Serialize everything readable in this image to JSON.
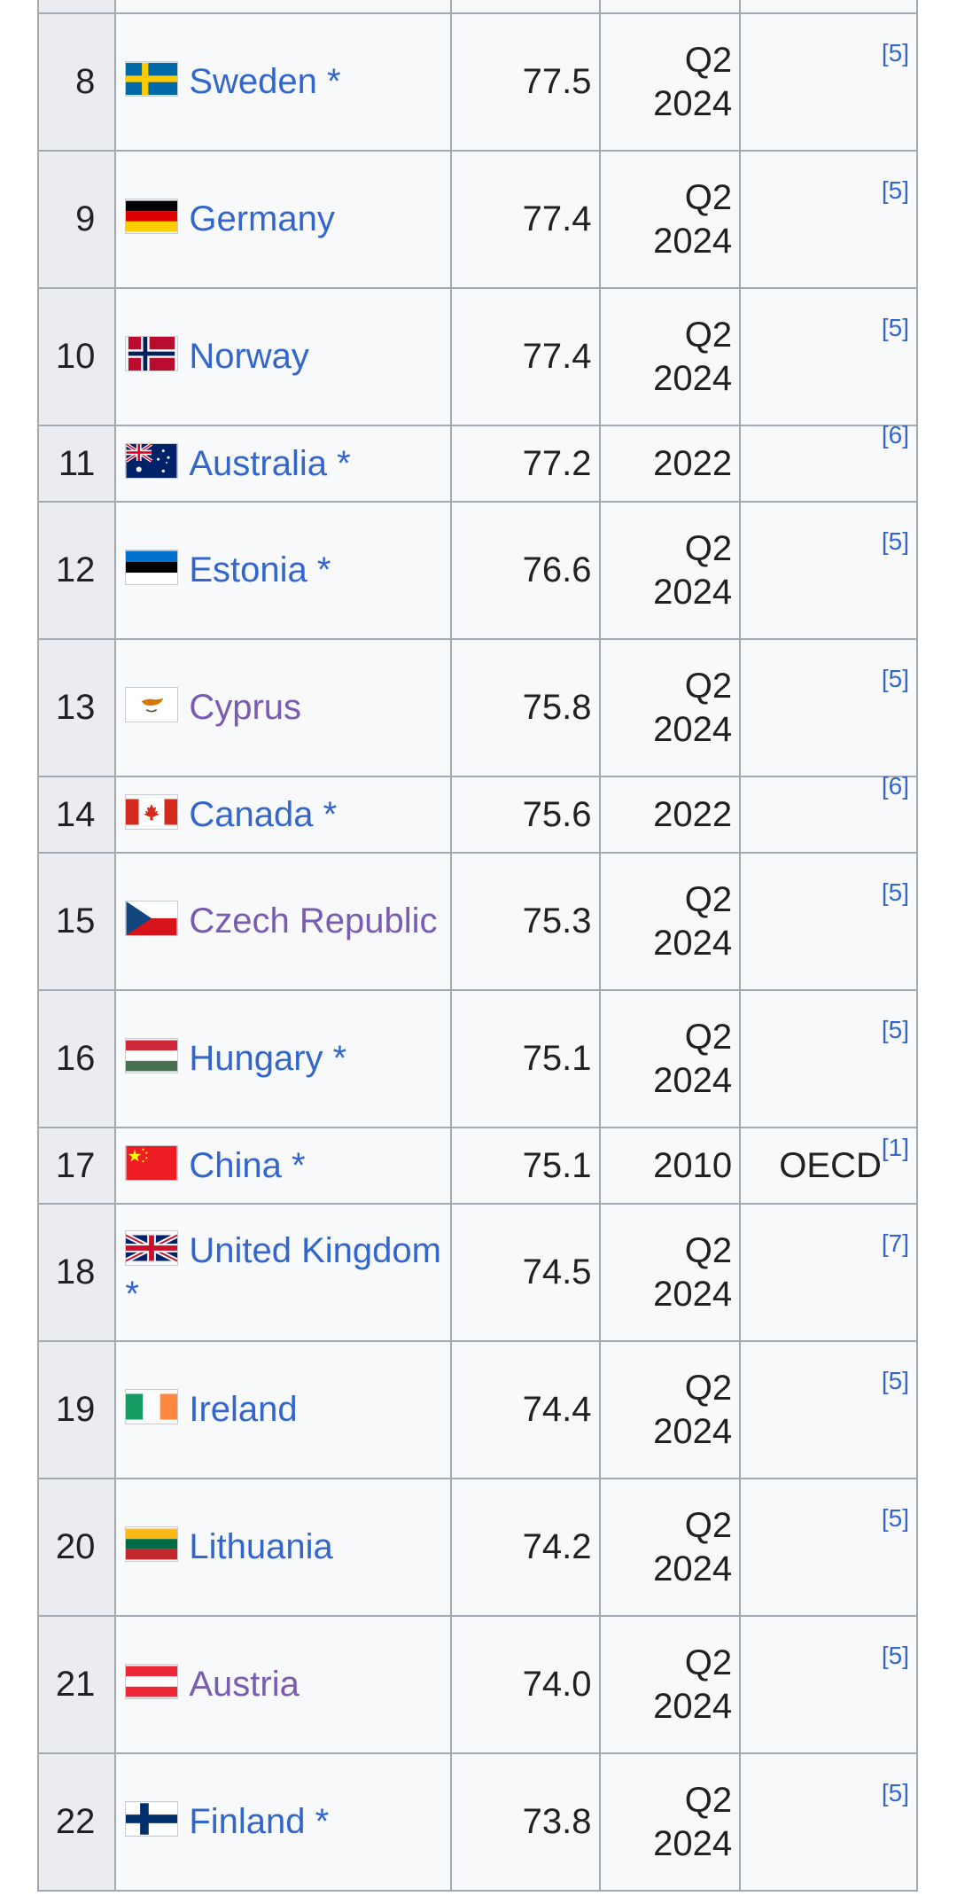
{
  "rows": [
    {
      "rank": "8",
      "country": "Sweden *",
      "visited": false,
      "flag": "sweden-flag",
      "value": "77.5",
      "date_line1": "Q2",
      "date_line2": "2024",
      "ref_prefix": "",
      "ref": "[5]"
    },
    {
      "rank": "9",
      "country": "Germany",
      "visited": false,
      "flag": "germany-flag",
      "value": "77.4",
      "date_line1": "Q2",
      "date_line2": "2024",
      "ref_prefix": "",
      "ref": "[5]"
    },
    {
      "rank": "10",
      "country": "Norway",
      "visited": false,
      "flag": "norway-flag",
      "value": "77.4",
      "date_line1": "Q2",
      "date_line2": "2024",
      "ref_prefix": "",
      "ref": "[5]"
    },
    {
      "rank": "11",
      "country": "Australia *",
      "visited": false,
      "flag": "australia-flag",
      "value": "77.2",
      "date_line1": "2022",
      "date_line2": "",
      "ref_prefix": "",
      "ref": "[6]"
    },
    {
      "rank": "12",
      "country": "Estonia *",
      "visited": false,
      "flag": "estonia-flag",
      "value": "76.6",
      "date_line1": "Q2",
      "date_line2": "2024",
      "ref_prefix": "",
      "ref": "[5]"
    },
    {
      "rank": "13",
      "country": "Cyprus",
      "visited": true,
      "flag": "cyprus-flag",
      "value": "75.8",
      "date_line1": "Q2",
      "date_line2": "2024",
      "ref_prefix": "",
      "ref": "[5]"
    },
    {
      "rank": "14",
      "country": "Canada *",
      "visited": false,
      "flag": "canada-flag",
      "value": "75.6",
      "date_line1": "2022",
      "date_line2": "",
      "ref_prefix": "",
      "ref": "[6]"
    },
    {
      "rank": "15",
      "country": "Czech Republic",
      "visited": true,
      "flag": "czech-flag",
      "value": "75.3",
      "date_line1": "Q2",
      "date_line2": "2024",
      "ref_prefix": "",
      "ref": "[5]"
    },
    {
      "rank": "16",
      "country": "Hungary *",
      "visited": false,
      "flag": "hungary-flag",
      "value": "75.1",
      "date_line1": "Q2",
      "date_line2": "2024",
      "ref_prefix": "",
      "ref": "[5]"
    },
    {
      "rank": "17",
      "country": "China *",
      "visited": false,
      "flag": "china-flag",
      "value": "75.1",
      "date_line1": "2010",
      "date_line2": "",
      "ref_prefix": "OECD",
      "ref": "[1]"
    },
    {
      "rank": "18",
      "country": "United Kingdom *",
      "visited": false,
      "flag": "uk-flag",
      "value": "74.5",
      "date_line1": "Q2",
      "date_line2": "2024",
      "ref_prefix": "",
      "ref": "[7]"
    },
    {
      "rank": "19",
      "country": "Ireland",
      "visited": false,
      "flag": "ireland-flag",
      "value": "74.4",
      "date_line1": "Q2",
      "date_line2": "2024",
      "ref_prefix": "",
      "ref": "[5]"
    },
    {
      "rank": "20",
      "country": "Lithuania",
      "visited": false,
      "flag": "lithuania-flag",
      "value": "74.2",
      "date_line1": "Q2",
      "date_line2": "2024",
      "ref_prefix": "",
      "ref": "[5]"
    },
    {
      "rank": "21",
      "country": "Austria",
      "visited": true,
      "flag": "austria-flag",
      "value": "74.0",
      "date_line1": "Q2",
      "date_line2": "2024",
      "ref_prefix": "",
      "ref": "[5]"
    },
    {
      "rank": "22",
      "country": "Finland *",
      "visited": false,
      "flag": "finland-flag",
      "value": "73.8",
      "date_line1": "Q2",
      "date_line2": "2024",
      "ref_prefix": "",
      "ref": "[5]"
    }
  ],
  "colors": {
    "link": "#3366cc",
    "visited_link": "#795cb2",
    "table_bg": "#f8f9fa",
    "rank_bg": "#eaecf0",
    "border": "#a2a9b1"
  }
}
